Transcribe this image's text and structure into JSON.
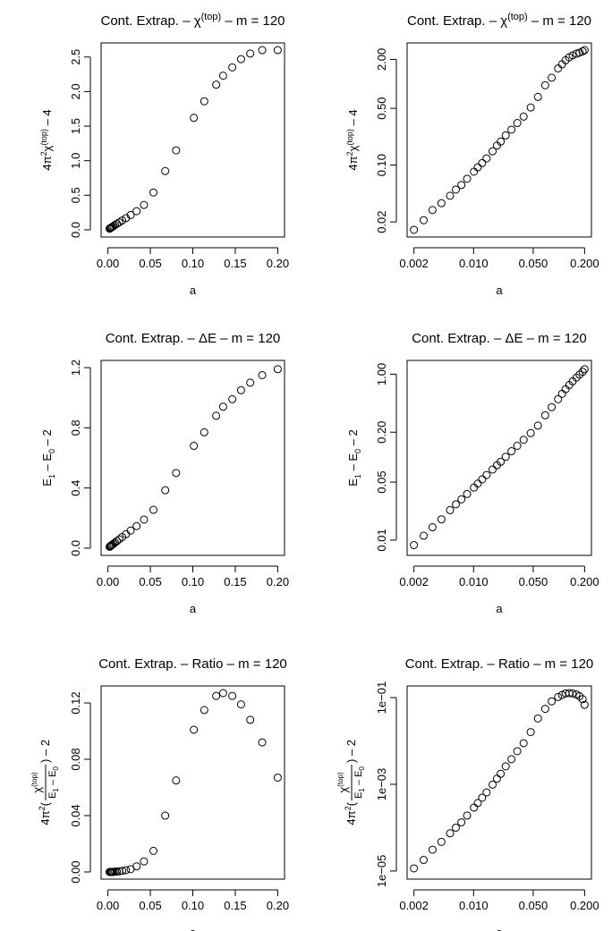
{
  "chart_data": [
    {
      "type": "scatter",
      "title": {
        "prefix": "Cont. Extrap. – ",
        "main": "χ",
        "sup": "(top)",
        "suffix": " – m = 120"
      },
      "xlabel": "a",
      "ylabel": {
        "parts": [
          [
            "4π",
            ""
          ],
          [
            "2",
            "sup"
          ],
          [
            "χ",
            ""
          ],
          [
            "(top)",
            "sup"
          ],
          [
            " – 4",
            ""
          ]
        ]
      },
      "xscale": "linear",
      "yscale": "linear",
      "xlim": [
        0.0,
        0.2
      ],
      "ylim": [
        0.0,
        2.6
      ],
      "xticks": [
        0,
        0.05,
        0.1,
        0.15,
        0.2
      ],
      "xticklabels": [
        "0.00",
        "0.05",
        "0.10",
        "0.15",
        "0.20"
      ],
      "yticks": [
        0,
        0.5,
        1,
        1.5,
        2,
        2.5
      ],
      "yticklabels": [
        "0.0",
        "0.5",
        "1.0",
        "1.5",
        "2.0",
        "2.5"
      ],
      "grid": false,
      "x": [
        0.002,
        0.0026,
        0.0033,
        0.0042,
        0.0053,
        0.0067,
        0.0084,
        0.0106,
        0.0134,
        0.0169,
        0.0213,
        0.0268,
        0.0338,
        0.0425,
        0.0536,
        0.0675,
        0.0803,
        0.1012,
        0.1135,
        0.1275,
        0.1357,
        0.1465,
        0.1568,
        0.1676,
        0.1817,
        0.2
      ],
      "y": [
        0.016,
        0.021,
        0.028,
        0.036,
        0.044,
        0.056,
        0.07,
        0.087,
        0.108,
        0.136,
        0.17,
        0.214,
        0.27,
        0.36,
        0.54,
        0.85,
        1.15,
        1.62,
        1.86,
        2.1,
        2.23,
        2.35,
        2.47,
        2.55,
        2.6,
        2.6
      ]
    },
    {
      "type": "scatter",
      "title": {
        "prefix": "Cont. Extrap. – ",
        "main": "χ",
        "sup": "(top)",
        "suffix": " – m = 120"
      },
      "xlabel": "a",
      "ylabel": {
        "parts": [
          [
            "4π",
            ""
          ],
          [
            "2",
            "sup"
          ],
          [
            "χ",
            ""
          ],
          [
            "(top)",
            "sup"
          ],
          [
            " – 4",
            ""
          ]
        ]
      },
      "xscale": "log",
      "yscale": "log",
      "xlim": [
        0.002,
        0.2
      ],
      "ylim": [
        0.016,
        2.6
      ],
      "xticks": [
        0.002,
        0.01,
        0.05,
        0.2
      ],
      "xticklabels": [
        "0.002",
        "0.010",
        "0.050",
        "0.200"
      ],
      "yticks": [
        0.02,
        0.1,
        0.5,
        2
      ],
      "yticklabels": [
        "0.02",
        "0.10",
        "0.50",
        "2.00"
      ],
      "grid": false,
      "x": [
        0.002,
        0.0026,
        0.0033,
        0.0042,
        0.0053,
        0.0062,
        0.0072,
        0.0084,
        0.0101,
        0.0112,
        0.0126,
        0.0142,
        0.0167,
        0.0188,
        0.0208,
        0.0238,
        0.0278,
        0.0325,
        0.0386,
        0.0467,
        0.0568,
        0.0691,
        0.0823,
        0.0978,
        0.1089,
        0.1198,
        0.1321,
        0.1448,
        0.1603,
        0.1746,
        0.1896,
        0.2
      ],
      "y": [
        0.016,
        0.021,
        0.028,
        0.034,
        0.042,
        0.05,
        0.057,
        0.068,
        0.083,
        0.094,
        0.106,
        0.121,
        0.148,
        0.174,
        0.195,
        0.232,
        0.273,
        0.33,
        0.395,
        0.512,
        0.69,
        0.96,
        1.19,
        1.55,
        1.74,
        1.95,
        2.12,
        2.24,
        2.35,
        2.42,
        2.51,
        2.6
      ]
    },
    {
      "type": "scatter",
      "title": {
        "prefix": "Cont. Extrap. – ",
        "main": "ΔE",
        "sup": "",
        "suffix": " – m = 120"
      },
      "xlabel": "a",
      "ylabel": {
        "parts": [
          [
            "E",
            ""
          ],
          [
            "1",
            "sub"
          ],
          [
            " – E",
            ""
          ],
          [
            "0",
            "sub"
          ],
          [
            " – 2",
            ""
          ]
        ]
      },
      "xscale": "linear",
      "yscale": "linear",
      "xlim": [
        0.0,
        0.2
      ],
      "ylim": [
        0.0,
        1.2
      ],
      "xticks": [
        0,
        0.05,
        0.1,
        0.15,
        0.2
      ],
      "xticklabels": [
        "0.00",
        "0.05",
        "0.10",
        "0.15",
        "0.20"
      ],
      "yticks": [
        0,
        0.4,
        0.8,
        1.2
      ],
      "yticklabels": [
        "0.0",
        "0.4",
        "0.8",
        "1.2"
      ],
      "grid": false,
      "x": [
        0.002,
        0.0026,
        0.0033,
        0.0042,
        0.0053,
        0.0067,
        0.0084,
        0.0106,
        0.0134,
        0.0169,
        0.0213,
        0.0268,
        0.0338,
        0.0425,
        0.0536,
        0.0675,
        0.0803,
        0.1012,
        0.1135,
        0.1275,
        0.1357,
        0.1465,
        0.1568,
        0.1676,
        0.1817,
        0.2
      ],
      "y": [
        0.009,
        0.012,
        0.015,
        0.019,
        0.024,
        0.03,
        0.037,
        0.047,
        0.059,
        0.074,
        0.093,
        0.117,
        0.147,
        0.19,
        0.255,
        0.385,
        0.5,
        0.68,
        0.77,
        0.88,
        0.94,
        0.99,
        1.05,
        1.1,
        1.15,
        1.19
      ]
    },
    {
      "type": "scatter",
      "title": {
        "prefix": "Cont. Extrap. – ",
        "main": "ΔE",
        "sup": "",
        "suffix": " – m = 120"
      },
      "xlabel": "a",
      "ylabel": {
        "parts": [
          [
            "E",
            ""
          ],
          [
            "1",
            "sub"
          ],
          [
            " – E",
            ""
          ],
          [
            "0",
            "sub"
          ],
          [
            " – 2",
            ""
          ]
        ]
      },
      "xscale": "log",
      "yscale": "log",
      "xlim": [
        0.002,
        0.2
      ],
      "ylim": [
        0.008,
        1.2
      ],
      "xticks": [
        0.002,
        0.01,
        0.05,
        0.2
      ],
      "xticklabels": [
        "0.002",
        "0.010",
        "0.050",
        "0.200"
      ],
      "yticks": [
        0.01,
        0.05,
        0.2,
        1
      ],
      "yticklabels": [
        "0.01",
        "0.05",
        "0.20",
        "1.00"
      ],
      "grid": false,
      "x": [
        0.002,
        0.0026,
        0.0033,
        0.0042,
        0.0053,
        0.0062,
        0.0072,
        0.0084,
        0.0101,
        0.0112,
        0.0126,
        0.0142,
        0.0167,
        0.0188,
        0.0208,
        0.0238,
        0.0278,
        0.0325,
        0.0386,
        0.0467,
        0.0568,
        0.0691,
        0.0823,
        0.0978,
        0.1089,
        0.1198,
        0.1321,
        0.1448,
        0.1603,
        0.1746,
        0.1896,
        0.2
      ],
      "y": [
        0.0087,
        0.0113,
        0.0143,
        0.0178,
        0.023,
        0.027,
        0.031,
        0.036,
        0.043,
        0.048,
        0.054,
        0.061,
        0.071,
        0.08,
        0.088,
        0.101,
        0.118,
        0.137,
        0.162,
        0.195,
        0.24,
        0.32,
        0.4,
        0.5,
        0.58,
        0.66,
        0.74,
        0.82,
        0.91,
        0.99,
        1.07,
        1.15
      ]
    },
    {
      "type": "scatter",
      "title": {
        "prefix": "Cont. Extrap. – ",
        "main": "Ratio",
        "sup": "",
        "suffix": " – m = 120"
      },
      "xlabel": "a",
      "ylabel": {
        "ratio": true,
        "lead": "4π",
        "sq": "2",
        "num": "χ",
        "numsup": "(top)",
        "den": "E",
        "den1": "1",
        "denmid": " – E",
        "den0": "0",
        "tail": " – 2"
      },
      "xscale": "linear",
      "yscale": "linear",
      "xlim": [
        0.0,
        0.2
      ],
      "ylim": [
        0.0,
        0.127
      ],
      "xticks": [
        0,
        0.05,
        0.1,
        0.15,
        0.2
      ],
      "xticklabels": [
        "0.00",
        "0.05",
        "0.10",
        "0.15",
        "0.20"
      ],
      "yticks": [
        0,
        0.04,
        0.08,
        0.12
      ],
      "yticklabels": [
        "0.00",
        "0.04",
        "0.08",
        "0.12"
      ],
      "grid": false,
      "x": [
        0.002,
        0.0026,
        0.0033,
        0.0042,
        0.0053,
        0.0067,
        0.0084,
        0.0106,
        0.0134,
        0.0169,
        0.0213,
        0.0268,
        0.0338,
        0.0425,
        0.0536,
        0.0675,
        0.0803,
        0.1012,
        0.1135,
        0.1275,
        0.1357,
        0.1465,
        0.1568,
        0.1676,
        0.1817,
        0.2
      ],
      "y": [
        0.0,
        0.0,
        0.0,
        0.0,
        0.0,
        0.0001,
        0.0002,
        0.0003,
        0.0005,
        0.0008,
        0.0013,
        0.002,
        0.004,
        0.0075,
        0.015,
        0.04,
        0.065,
        0.101,
        0.115,
        0.125,
        0.127,
        0.125,
        0.119,
        0.108,
        0.092,
        0.067
      ]
    },
    {
      "type": "scatter",
      "title": {
        "prefix": "Cont. Extrap. – ",
        "main": "Ratio",
        "sup": "",
        "suffix": " – m = 120"
      },
      "xlabel": "a",
      "ylabel": {
        "ratio": true,
        "lead": "4π",
        "sq": "2",
        "num": "χ",
        "numsup": "(top)",
        "den": "E",
        "den1": "1",
        "denmid": " – E",
        "den0": "0",
        "tail": " – 2"
      },
      "xscale": "log",
      "yscale": "log",
      "xlim": [
        0.002,
        0.2
      ],
      "ylim": [
        9.5e-06,
        0.127
      ],
      "xticks": [
        0.002,
        0.01,
        0.05,
        0.2
      ],
      "xticklabels": [
        "0.002",
        "0.010",
        "0.050",
        "0.200"
      ],
      "yticks": [
        1e-05,
        0.001,
        0.1
      ],
      "yticklabels": [
        "1e−05",
        "1e−03",
        "1e−01"
      ],
      "grid": false,
      "x": [
        0.002,
        0.0026,
        0.0033,
        0.0042,
        0.0053,
        0.0062,
        0.0072,
        0.0084,
        0.0101,
        0.0112,
        0.0126,
        0.0142,
        0.0167,
        0.0188,
        0.0208,
        0.0238,
        0.0278,
        0.0325,
        0.0386,
        0.0467,
        0.0568,
        0.0691,
        0.0823,
        0.0978,
        0.1089,
        0.1198,
        0.1321,
        0.1448,
        0.1603,
        0.1746,
        0.1896,
        0.2
      ],
      "y": [
        1.15e-05,
        1.8e-05,
        3.1e-05,
        4.7e-05,
        7.4e-05,
        0.0001,
        0.000133,
        0.00019,
        0.00029,
        0.00037,
        0.00049,
        0.00065,
        0.00098,
        0.00135,
        0.00175,
        0.0026,
        0.0038,
        0.0058,
        0.0089,
        0.016,
        0.033,
        0.055,
        0.082,
        0.103,
        0.115,
        0.125,
        0.127,
        0.125,
        0.118,
        0.108,
        0.092,
        0.068
      ]
    }
  ]
}
